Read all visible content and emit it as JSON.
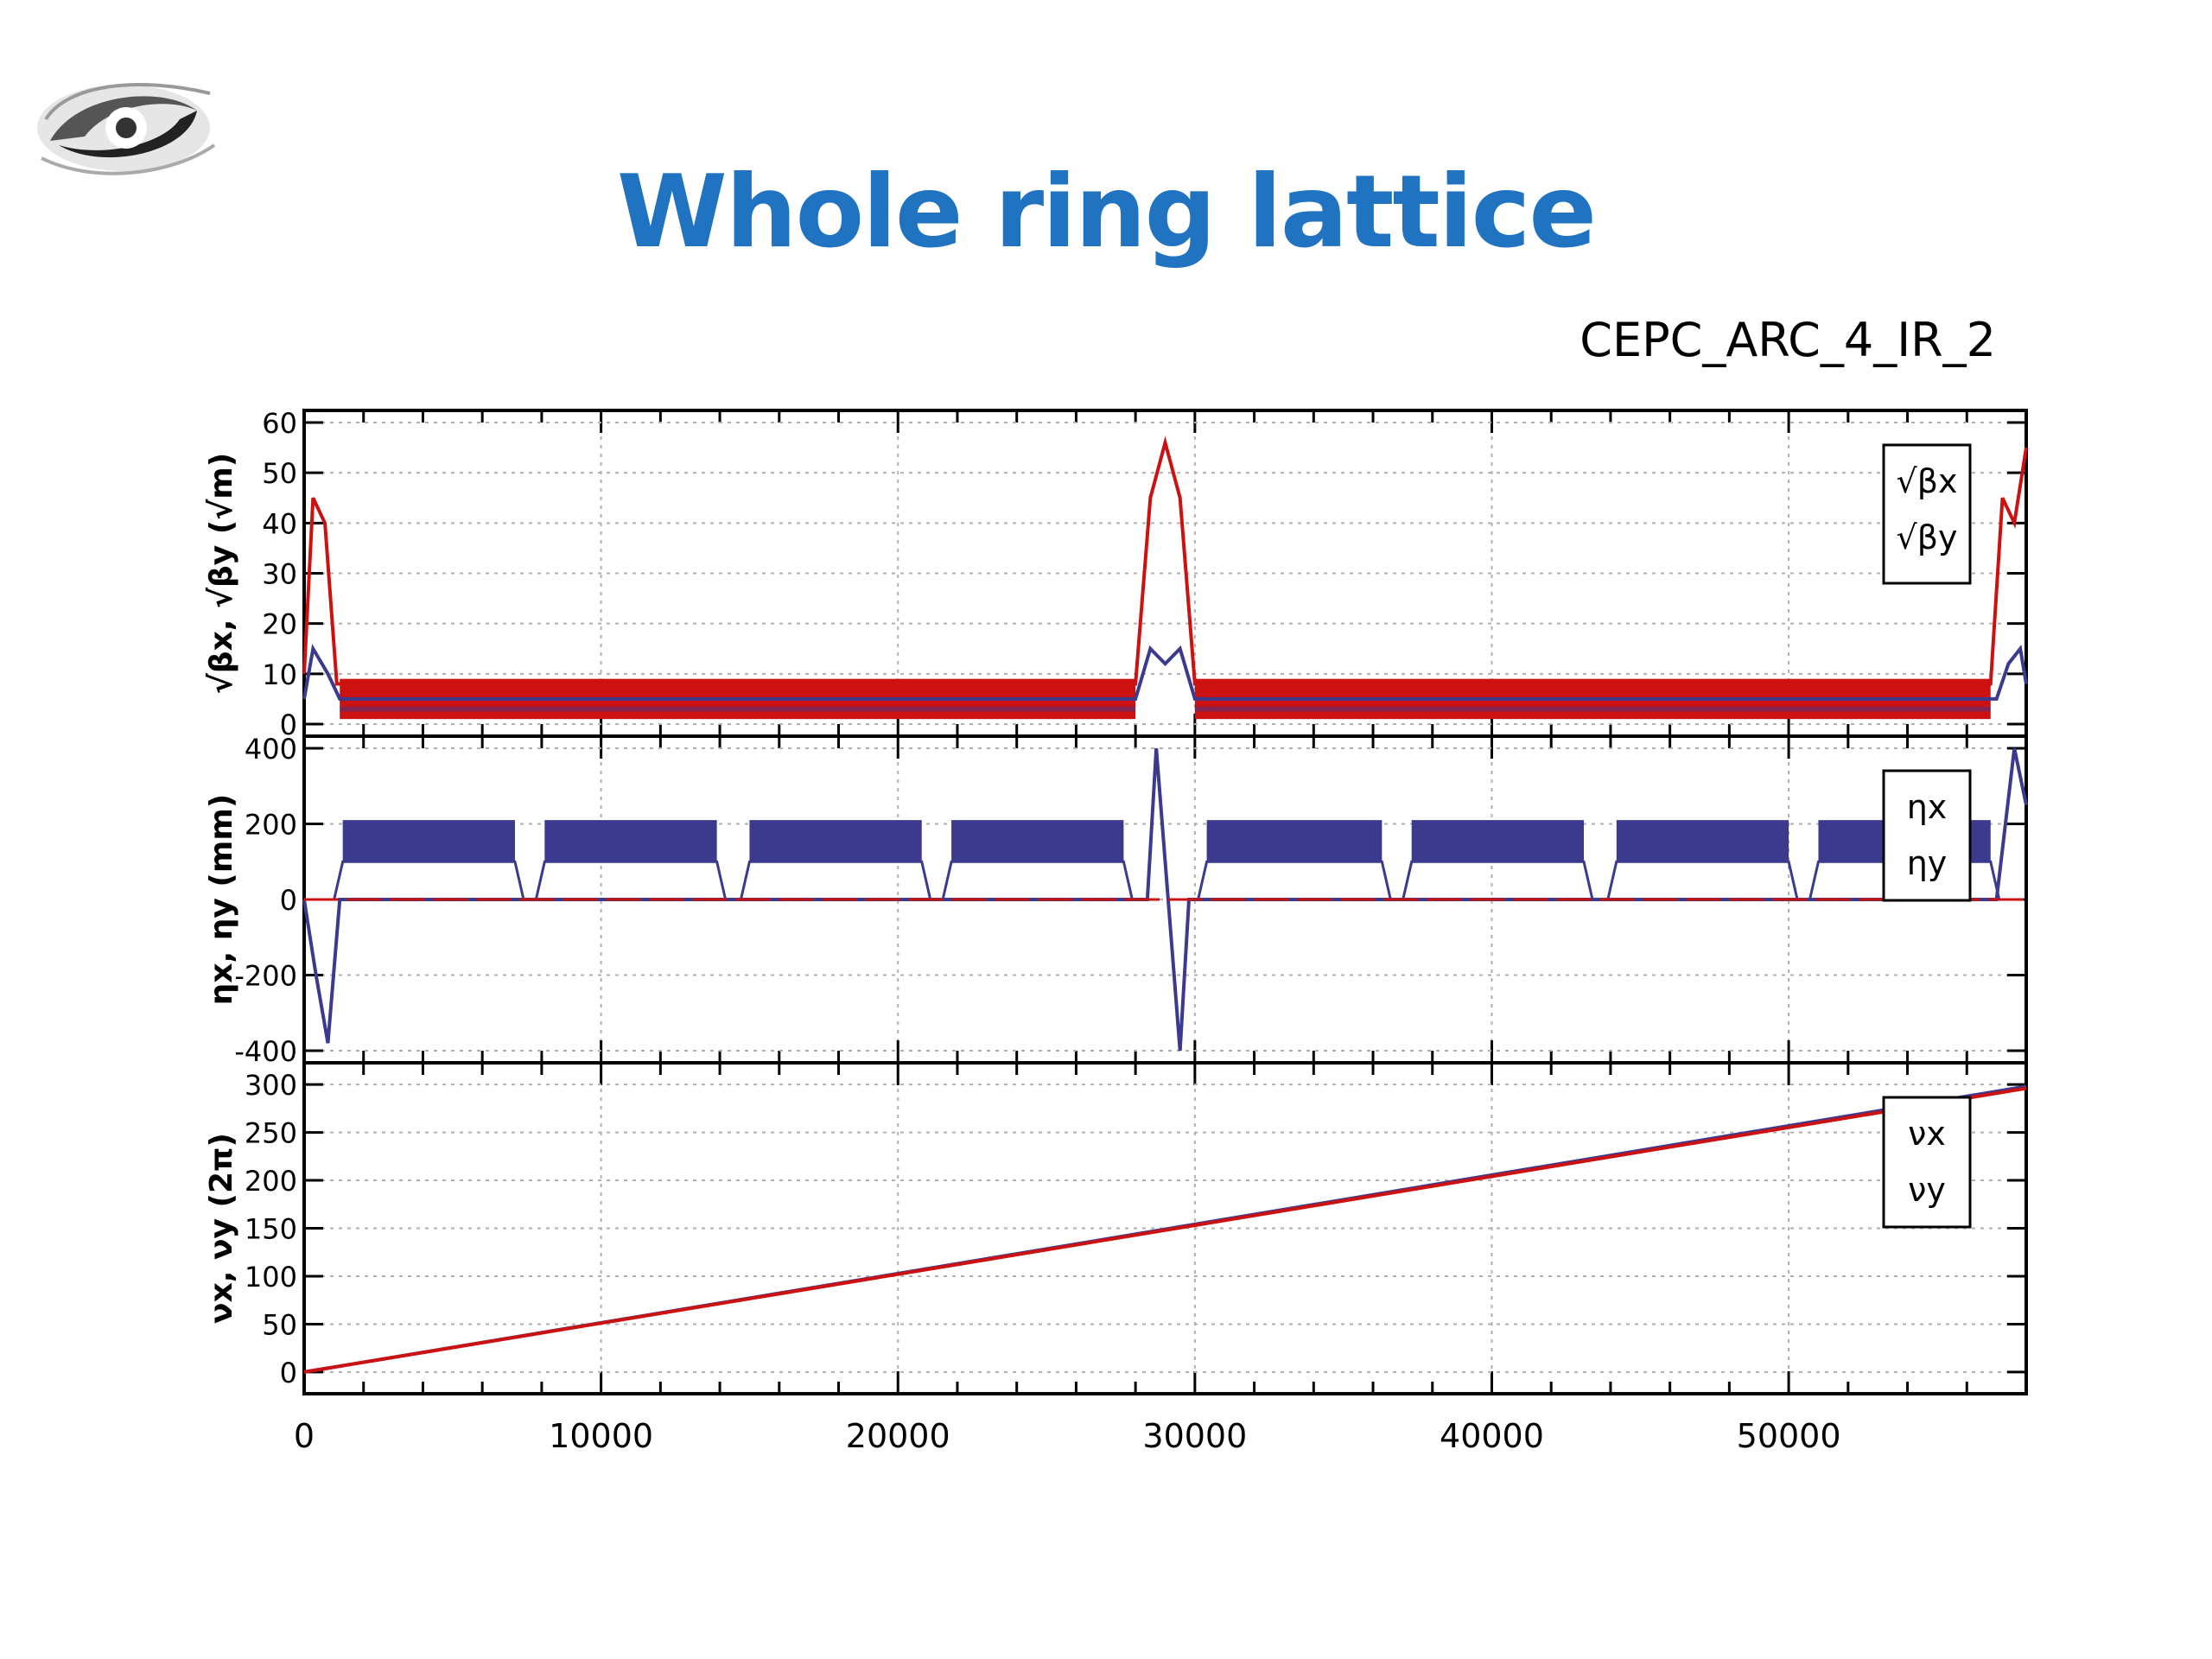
{
  "slide": {
    "title": "Whole ring lattice",
    "subtitle": "CEPC_ARC_4_IR_2"
  },
  "colors": {
    "title": "#1f73c0",
    "series_x": "#3b3a8f",
    "series_y": "#cc1111",
    "grid": "#b0b0b0"
  },
  "chart_data": [
    {
      "type": "line",
      "panel": "beta",
      "ylabel": "√βx, √βy (√m)",
      "ylim": [
        0,
        60
      ],
      "yticks": [
        "0",
        "10",
        "20",
        "30",
        "40",
        "50",
        "60"
      ],
      "xlim": [
        0,
        58000
      ],
      "grid": true,
      "legend": [
        "√βx",
        "√βy"
      ],
      "legend_position": "top-right",
      "series": [
        {
          "name": "√βx",
          "x": [
            0,
            300,
            800,
            1200,
            28000,
            28500,
            29000,
            29500,
            30000,
            57000,
            57400,
            57800,
            58000
          ],
          "y": [
            5,
            15,
            10,
            5,
            5,
            15,
            12,
            15,
            5,
            5,
            12,
            15,
            8
          ]
        },
        {
          "name": "√βy",
          "x": [
            0,
            300,
            700,
            1100,
            28000,
            28500,
            29000,
            29500,
            30000,
            56800,
            57200,
            57600,
            58000
          ],
          "y": [
            10,
            45,
            40,
            8,
            8,
            45,
            56,
            45,
            8,
            8,
            45,
            40,
            55
          ]
        }
      ]
    },
    {
      "type": "line",
      "panel": "dispersion",
      "ylabel": "ηx, ηy (mm)",
      "ylim": [
        -400,
        400
      ],
      "yticks": [
        "400",
        "200",
        "0",
        "-200",
        "-400"
      ],
      "xlim": [
        0,
        58000
      ],
      "grid": true,
      "legend": [
        "ηx",
        "ηy"
      ],
      "legend_position": "top-right",
      "arc_sections_x": [
        [
          1300,
          7100
        ],
        [
          8100,
          13900
        ],
        [
          15000,
          20800
        ],
        [
          21800,
          27600
        ],
        [
          30400,
          36300
        ],
        [
          37300,
          43100
        ],
        [
          44200,
          50000
        ],
        [
          51000,
          56800
        ]
      ],
      "arc_band": [
        100,
        210
      ],
      "series": [
        {
          "name": "ηx",
          "x": [
            0,
            400,
            800,
            1200,
            28400,
            28700,
            29100,
            29500,
            29800,
            57000,
            57600,
            58000
          ],
          "y": [
            0,
            -200,
            -380,
            0,
            0,
            400,
            0,
            -400,
            0,
            0,
            400,
            250
          ]
        },
        {
          "name": "ηy",
          "x": [
            0,
            58000
          ],
          "y": [
            0,
            0
          ]
        }
      ]
    },
    {
      "type": "line",
      "panel": "tune",
      "ylabel": "νx, νy (2π)",
      "ylim": [
        -10,
        310
      ],
      "yticks": [
        "300",
        "250",
        "200",
        "150",
        "100",
        "50",
        "0"
      ],
      "xlim": [
        0,
        58000
      ],
      "xticks": [
        "0",
        "10000",
        "20000",
        "30000",
        "40000",
        "50000"
      ],
      "grid": true,
      "legend": [
        "νx",
        "νy"
      ],
      "legend_position": "top-right",
      "series": [
        {
          "name": "νx",
          "x": [
            0,
            58000
          ],
          "y": [
            0,
            298
          ]
        },
        {
          "name": "νy",
          "x": [
            0,
            58000
          ],
          "y": [
            0,
            296
          ]
        }
      ]
    }
  ]
}
